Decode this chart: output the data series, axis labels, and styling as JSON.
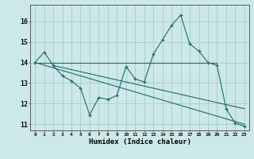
{
  "xlabel": "Humidex (Indice chaleur)",
  "background_color": "#cde8e8",
  "line_color": "#1a6b6b",
  "grid_color": "#aacfcf",
  "xlim": [
    -0.5,
    23.5
  ],
  "ylim": [
    10.7,
    16.8
  ],
  "yticks": [
    11,
    12,
    13,
    14,
    15,
    16
  ],
  "line1_x": [
    0,
    1,
    2,
    3,
    4,
    5,
    6,
    7,
    8,
    9,
    10,
    11,
    12,
    13,
    14,
    15,
    16,
    17,
    18,
    19,
    20,
    21,
    22,
    23
  ],
  "line1_y": [
    14.0,
    14.5,
    13.85,
    13.35,
    13.1,
    12.75,
    11.45,
    12.3,
    12.2,
    12.4,
    13.8,
    13.2,
    13.05,
    14.4,
    15.1,
    15.8,
    16.3,
    14.9,
    14.55,
    14.0,
    13.85,
    11.75,
    11.05,
    10.9
  ],
  "line2_x": [
    0,
    19,
    20
  ],
  "line2_y": [
    14.0,
    14.0,
    14.0
  ],
  "line3_x": [
    0,
    23
  ],
  "line3_y": [
    14.0,
    11.0
  ],
  "line4_x": [
    2,
    23
  ],
  "line4_y": [
    13.85,
    11.75
  ]
}
